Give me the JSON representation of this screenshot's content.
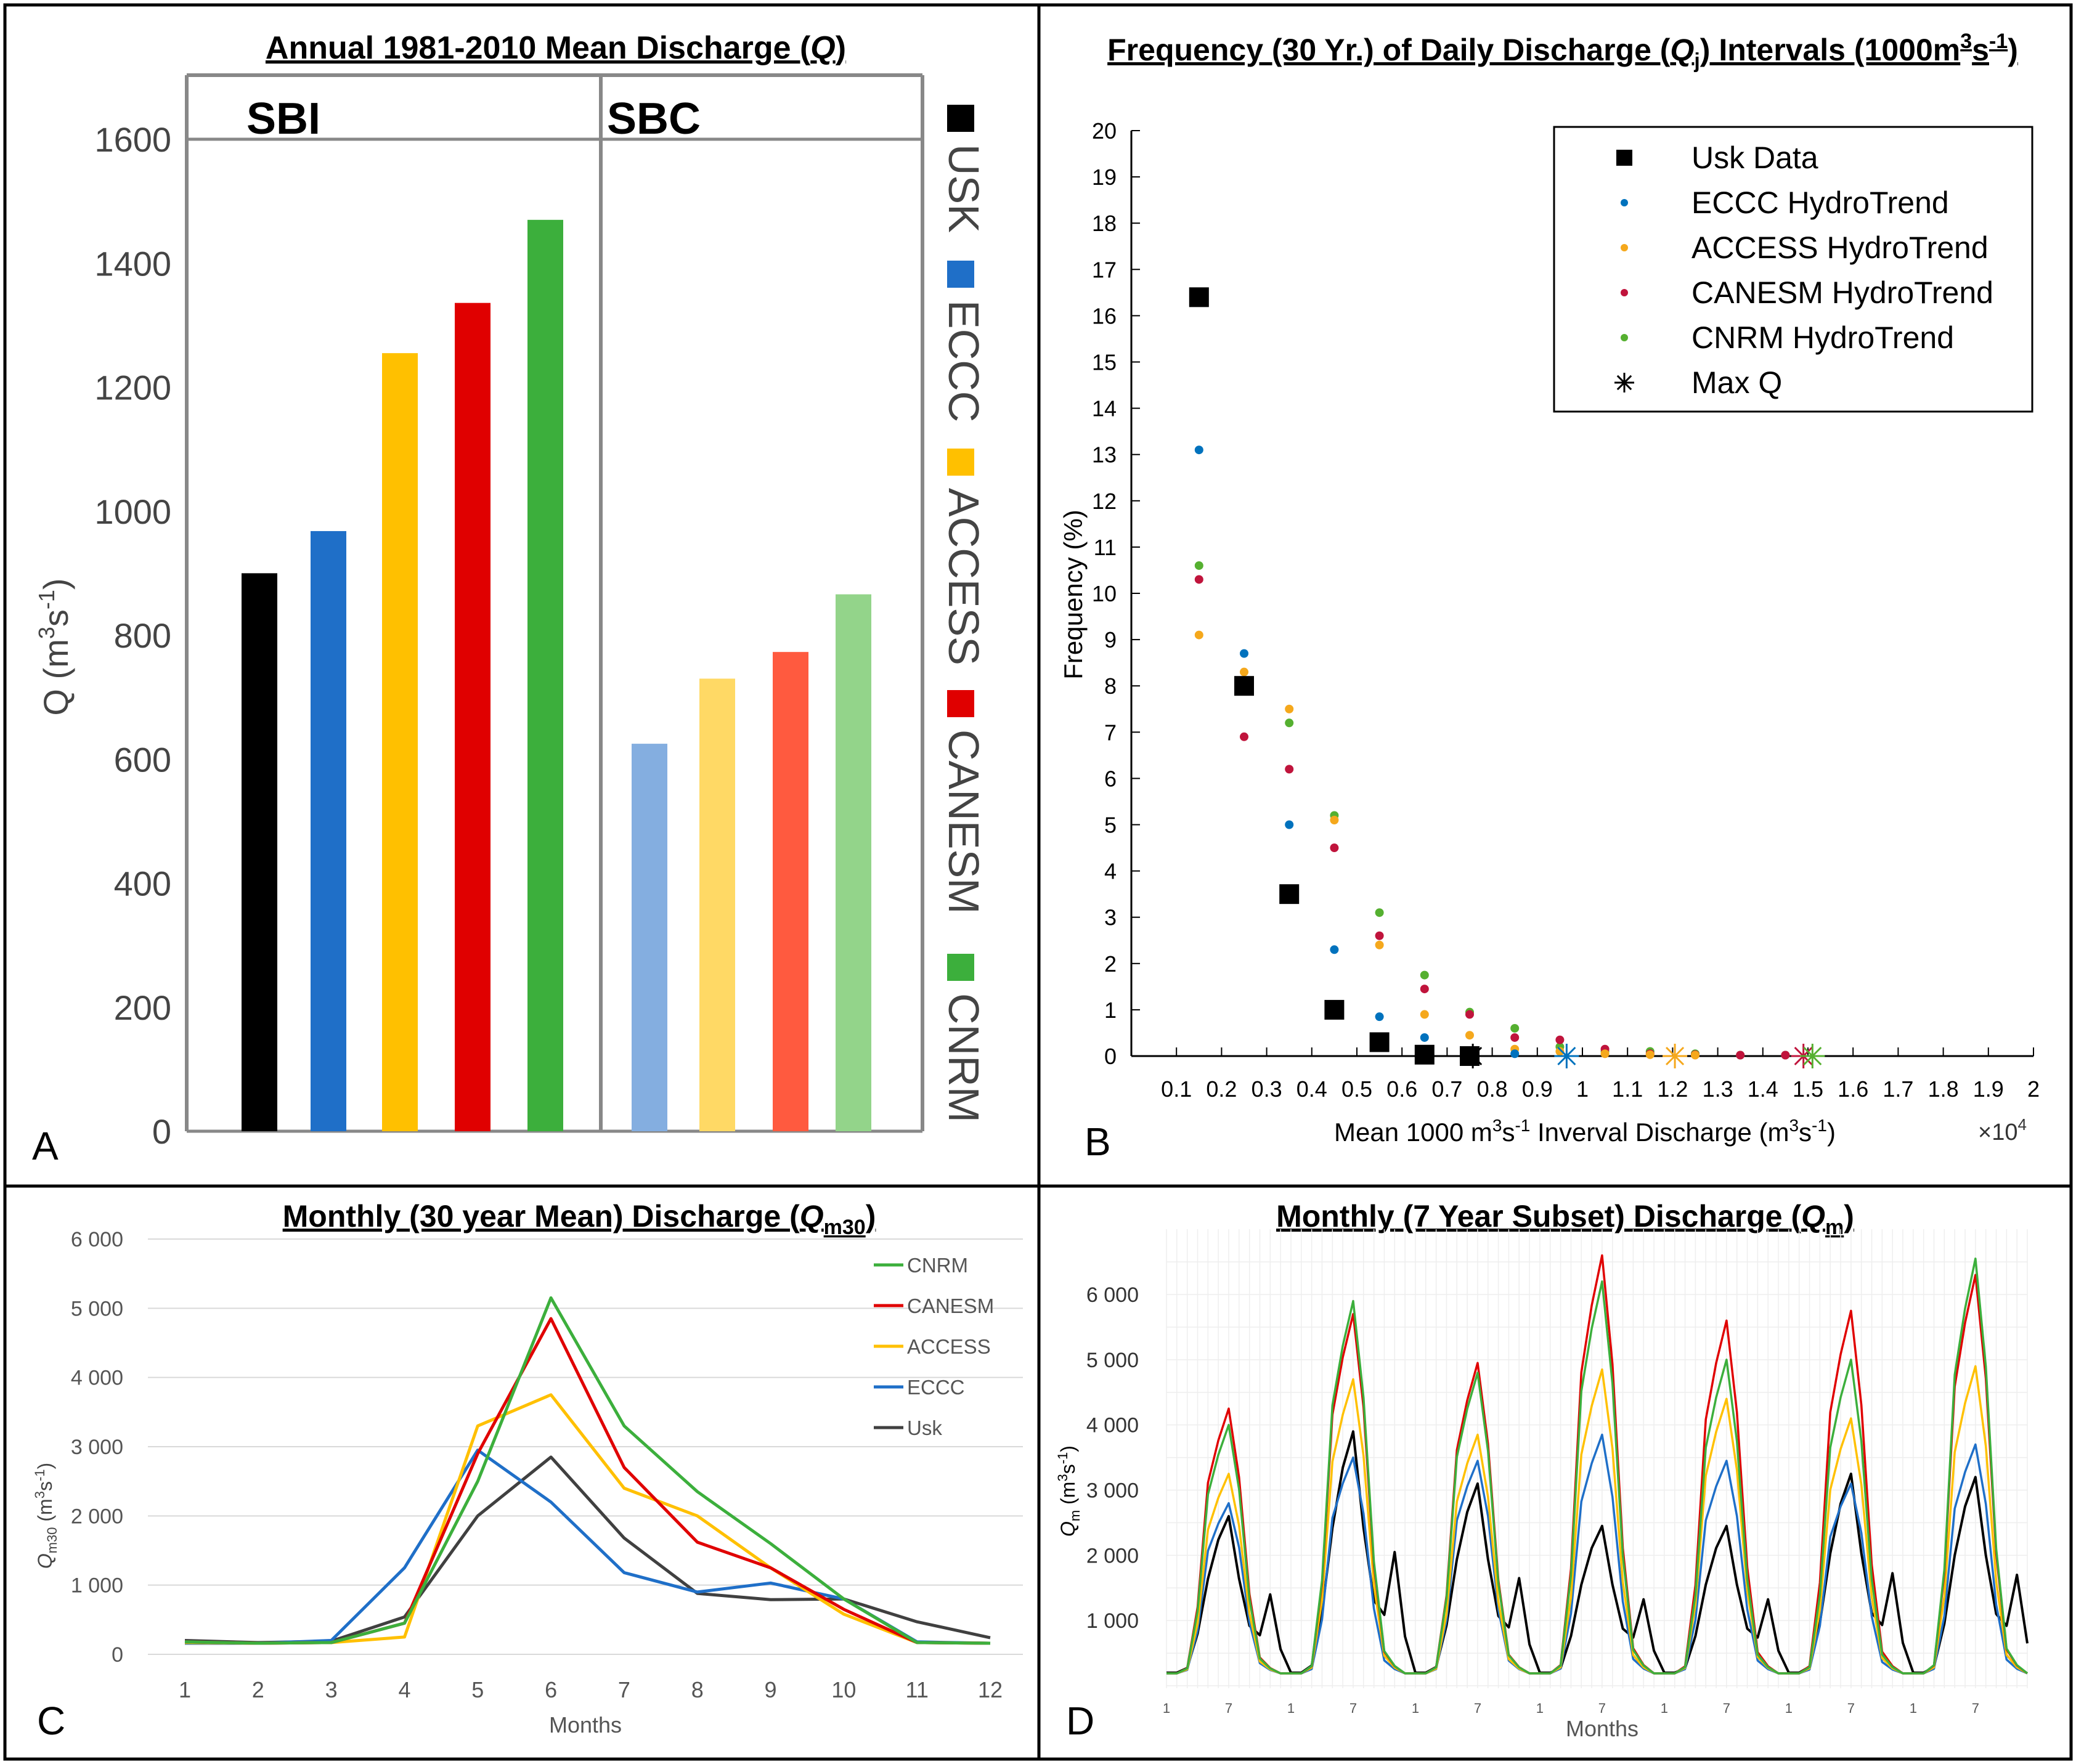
{
  "panels": {
    "a": {
      "letter": "A"
    },
    "b": {
      "letter": "B"
    },
    "c": {
      "letter": "C"
    },
    "d": {
      "letter": "D"
    }
  },
  "chart_data": [
    {
      "id": "annual",
      "type": "bar",
      "title": "Annual 1981-2010 Mean Discharge (",
      "title_var": "Q",
      "title_end": ")",
      "ylabel": "Q (m",
      "ylabel_sup1": "3",
      "ylabel_mid": "s",
      "ylabel_sup2": "-1",
      "ylabel_end": ")",
      "ylim": [
        0,
        1700
      ],
      "yticks": [
        0,
        200,
        400,
        600,
        800,
        1000,
        1200,
        1400,
        1600
      ],
      "groups": [
        {
          "name": "SBI",
          "bars": [
            {
              "model": "USK",
              "value": 900,
              "color": "#000000"
            },
            {
              "model": "ECCC",
              "value": 968,
              "color": "#1f6fc8"
            },
            {
              "model": "ACCESS",
              "value": 1255,
              "color": "#ffc000"
            },
            {
              "model": "CANESM",
              "value": 1336,
              "color": "#e00000"
            },
            {
              "model": "CNRM",
              "value": 1470,
              "color": "#3caf3c"
            }
          ]
        },
        {
          "name": "SBC",
          "bars": [
            {
              "model": "ECCC",
              "value": 625,
              "color": "#84aee0"
            },
            {
              "model": "ACCESS",
              "value": 730,
              "color": "#ffd965"
            },
            {
              "model": "CANESM",
              "value": 773,
              "color": "#ff5a3f"
            },
            {
              "model": "CNRM",
              "value": 866,
              "color": "#93d48a"
            }
          ]
        }
      ],
      "legend": [
        {
          "label": "USK",
          "color": "#000000"
        },
        {
          "label": "ECCC",
          "color": "#1f6fc8"
        },
        {
          "label": "ACCESS",
          "color": "#ffc000"
        },
        {
          "label": "CANESM",
          "color": "#e00000"
        },
        {
          "label": "CNRM",
          "color": "#3caf3c"
        }
      ]
    },
    {
      "id": "frequency",
      "type": "scatter",
      "title_a": "Frequency (30 Yr.) of Daily Discharge (",
      "title_var": "Q",
      "title_sub": "j",
      "title_b": ") Intervals (1000m",
      "title_sup1": "3",
      "title_c": "s",
      "title_sup2": "-1",
      "title_d": ")",
      "xlabel_a": "Mean 1000 m",
      "xlabel_sup1": "3",
      "xlabel_b": "s",
      "xlabel_sup2": "-1",
      "xlabel_c": " Inverval Discharge (m",
      "xlabel_sup3": "3",
      "xlabel_d": "s",
      "xlabel_sup4": "-1",
      "xlabel_e": ")",
      "ylabel": "Frequency (%)",
      "exponent_a": "×10",
      "exponent_b": "4",
      "xlim": [
        0,
        2
      ],
      "ylim": [
        0,
        20
      ],
      "xticks": [
        "0.1",
        "0.2",
        "0.3",
        "0.4",
        "0.5",
        "0.6",
        "0.7",
        "0.8",
        "0.9",
        "1",
        "1.1",
        "1.2",
        "1.3",
        "1.4",
        "1.5",
        "1.6",
        "1.7",
        "1.8",
        "1.9",
        "2"
      ],
      "yticks": [
        "0",
        "1",
        "2",
        "3",
        "4",
        "5",
        "6",
        "7",
        "8",
        "9",
        "10",
        "11",
        "12",
        "13",
        "14",
        "15",
        "16",
        "17",
        "18",
        "19",
        "20"
      ],
      "series": [
        {
          "name": "Usk Data",
          "color": "#000000",
          "marker": "square",
          "points": [
            [
              0.15,
              16.4
            ],
            [
              0.25,
              8.0
            ],
            [
              0.35,
              3.5
            ],
            [
              0.45,
              1.0
            ],
            [
              0.55,
              0.3
            ],
            [
              0.65,
              0.03
            ],
            [
              0.75,
              0.0
            ]
          ]
        },
        {
          "name": "ECCC HydroTrend",
          "color": "#0072bd",
          "marker": "dot",
          "points": [
            [
              0.15,
              13.1
            ],
            [
              0.25,
              8.7
            ],
            [
              0.35,
              5.0
            ],
            [
              0.45,
              2.3
            ],
            [
              0.55,
              0.85
            ],
            [
              0.65,
              0.4
            ],
            [
              0.75,
              0.1
            ],
            [
              0.85,
              0.05
            ]
          ]
        },
        {
          "name": "ACCESS HydroTrend",
          "color": "#f5a81c",
          "marker": "dot",
          "points": [
            [
              0.15,
              9.1
            ],
            [
              0.25,
              8.3
            ],
            [
              0.35,
              7.5
            ],
            [
              0.45,
              5.1
            ],
            [
              0.55,
              2.4
            ],
            [
              0.65,
              0.9
            ],
            [
              0.75,
              0.45
            ],
            [
              0.85,
              0.15
            ],
            [
              0.95,
              0.1
            ],
            [
              1.05,
              0.05
            ],
            [
              1.15,
              0.03
            ],
            [
              1.25,
              0.02
            ]
          ]
        },
        {
          "name": "CANESM HydroTrend",
          "color": "#c0143c",
          "marker": "dot",
          "points": [
            [
              0.15,
              10.3
            ],
            [
              0.25,
              6.9
            ],
            [
              0.35,
              6.2
            ],
            [
              0.45,
              4.5
            ],
            [
              0.55,
              2.6
            ],
            [
              0.65,
              1.45
            ],
            [
              0.75,
              0.9
            ],
            [
              0.85,
              0.4
            ],
            [
              0.95,
              0.35
            ],
            [
              1.05,
              0.15
            ],
            [
              1.15,
              0.05
            ],
            [
              1.25,
              0.03
            ],
            [
              1.35,
              0.02
            ],
            [
              1.45,
              0.02
            ]
          ]
        },
        {
          "name": "CNRM HydroTrend",
          "color": "#55b030",
          "marker": "dot",
          "points": [
            [
              0.15,
              10.6
            ],
            [
              0.25,
              8.0
            ],
            [
              0.35,
              7.2
            ],
            [
              0.45,
              5.2
            ],
            [
              0.55,
              3.1
            ],
            [
              0.65,
              1.75
            ],
            [
              0.75,
              0.95
            ],
            [
              0.85,
              0.6
            ],
            [
              0.95,
              0.2
            ],
            [
              1.05,
              0.1
            ],
            [
              1.15,
              0.1
            ],
            [
              1.25,
              0.05
            ],
            [
              1.35,
              0.02
            ],
            [
              1.45,
              0.02
            ]
          ]
        },
        {
          "name": "Max Q",
          "color": "#000000",
          "marker": "asterisk",
          "points": [
            [
              0.757,
              0.0,
              "#000000"
            ],
            [
              0.965,
              0.0,
              "#0072bd"
            ],
            [
              1.205,
              0.0,
              "#f5a81c"
            ],
            [
              1.49,
              0.0,
              "#c0143c"
            ],
            [
              1.51,
              0.0,
              "#55b030"
            ]
          ]
        }
      ]
    },
    {
      "id": "monthly30",
      "type": "line",
      "title": "Monthly (30 year Mean) Discharge (",
      "title_var": "Q",
      "title_sub": "m30",
      "title_end": ")",
      "xlabel": "Months",
      "ylabel_var": "Q",
      "ylabel_sub": "m30",
      "ylabel_unit_a": " (m",
      "ylabel_unit_sup1": "3",
      "ylabel_unit_b": "s",
      "ylabel_unit_sup2": "-1",
      "ylabel_unit_c": ")",
      "x": [
        1,
        2,
        3,
        4,
        5,
        6,
        7,
        8,
        9,
        10,
        11,
        12
      ],
      "ylim": [
        0,
        6000
      ],
      "yticks": [
        "0",
        "1 000",
        "2 000",
        "3 000",
        "4 000",
        "5 000",
        "6 000"
      ],
      "series": [
        {
          "name": "CNRM",
          "color": "#3caf3c",
          "values": [
            180,
            160,
            170,
            450,
            2500,
            5150,
            3300,
            2350,
            1600,
            800,
            170,
            160
          ]
        },
        {
          "name": "CANESM",
          "color": "#e00000",
          "values": [
            180,
            160,
            170,
            450,
            2900,
            4850,
            2700,
            1620,
            1250,
            650,
            170,
            160
          ]
        },
        {
          "name": "ACCESS",
          "color": "#ffc000",
          "values": [
            170,
            160,
            170,
            250,
            3300,
            3750,
            2400,
            2000,
            1250,
            580,
            170,
            160
          ]
        },
        {
          "name": "ECCC",
          "color": "#1f6fc8",
          "values": [
            160,
            160,
            200,
            1250,
            2950,
            2200,
            1180,
            900,
            1030,
            800,
            180,
            160
          ]
        },
        {
          "name": "Usk",
          "color": "#404040",
          "values": [
            200,
            170,
            190,
            540,
            2000,
            2850,
            1680,
            880,
            790,
            800,
            470,
            240
          ]
        }
      ]
    },
    {
      "id": "monthly7yr",
      "type": "line",
      "title": "Monthly (7 Year Subset) Discharge (",
      "title_var": "Q",
      "title_sub": "m",
      "title_end": ")",
      "xlabel": "Months",
      "ylabel_var": "Q",
      "ylabel_sub": "m",
      "ylabel_unit_a": " (m",
      "ylabel_unit_sup1": "3",
      "ylabel_unit_b": "s",
      "ylabel_unit_sup2": "-1",
      "ylabel_unit_c": ")",
      "n_points": 84,
      "ylim": [
        0,
        6800
      ],
      "yticks": [
        "1 000",
        "2 000",
        "3 000",
        "4 000",
        "5 000",
        "6 000"
      ],
      "xticks": [
        "1",
        "7",
        "1",
        "7",
        "1",
        "7",
        "1",
        "7",
        "1",
        "7",
        "1",
        "7",
        "1",
        "7"
      ],
      "series": [
        {
          "name": "CNRM",
          "color": "#3caf3c",
          "peaks": [
            4000,
            5900,
            4800,
            6200,
            5000,
            5000,
            6550
          ]
        },
        {
          "name": "CANESM",
          "color": "#e00000",
          "peaks": [
            4250,
            5700,
            4950,
            6600,
            5600,
            5750,
            6300
          ]
        },
        {
          "name": "ACCESS",
          "color": "#ffc000",
          "peaks": [
            3250,
            4700,
            3850,
            4850,
            4400,
            4100,
            4900
          ]
        },
        {
          "name": "ECCC",
          "color": "#1f6fc8",
          "peaks": [
            2800,
            3500,
            3450,
            3850,
            3450,
            3100,
            3700
          ]
        },
        {
          "name": "Usk",
          "color": "#000000",
          "peaks": [
            2600,
            3900,
            3100,
            2450,
            2450,
            3250,
            3200
          ]
        }
      ]
    }
  ]
}
